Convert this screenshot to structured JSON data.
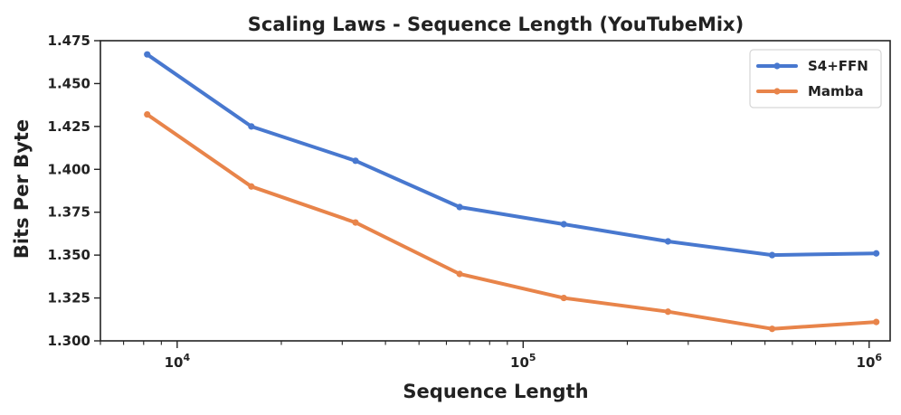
{
  "chart_data": {
    "type": "line",
    "title": "Scaling Laws - Sequence Length (YouTubeMix)",
    "xlabel": "Sequence Length",
    "ylabel": "Bits Per Byte",
    "xscale": "log",
    "xlim": [
      6000,
      1150000
    ],
    "ylim": [
      1.3,
      1.475
    ],
    "x": [
      8192,
      16384,
      32768,
      65536,
      131072,
      262144,
      524288,
      1048576
    ],
    "yticks": [
      1.3,
      1.325,
      1.35,
      1.375,
      1.4,
      1.425,
      1.45,
      1.475
    ],
    "ytick_labels": [
      "1.300",
      "1.325",
      "1.350",
      "1.375",
      "1.400",
      "1.425",
      "1.450",
      "1.475"
    ],
    "xticks_major": [
      10000,
      100000,
      1000000
    ],
    "xtick_labels": [
      {
        "base": "10",
        "exp": "4"
      },
      {
        "base": "10",
        "exp": "5"
      },
      {
        "base": "10",
        "exp": "6"
      }
    ],
    "legend_position": "top-right",
    "grid": false,
    "series": [
      {
        "name": "S4+FFN",
        "color": "#4878cf",
        "values": [
          1.467,
          1.425,
          1.405,
          1.378,
          1.368,
          1.358,
          1.35,
          1.351
        ]
      },
      {
        "name": "Mamba",
        "color": "#e8844a",
        "values": [
          1.432,
          1.39,
          1.369,
          1.339,
          1.325,
          1.317,
          1.307,
          1.311
        ]
      }
    ]
  }
}
